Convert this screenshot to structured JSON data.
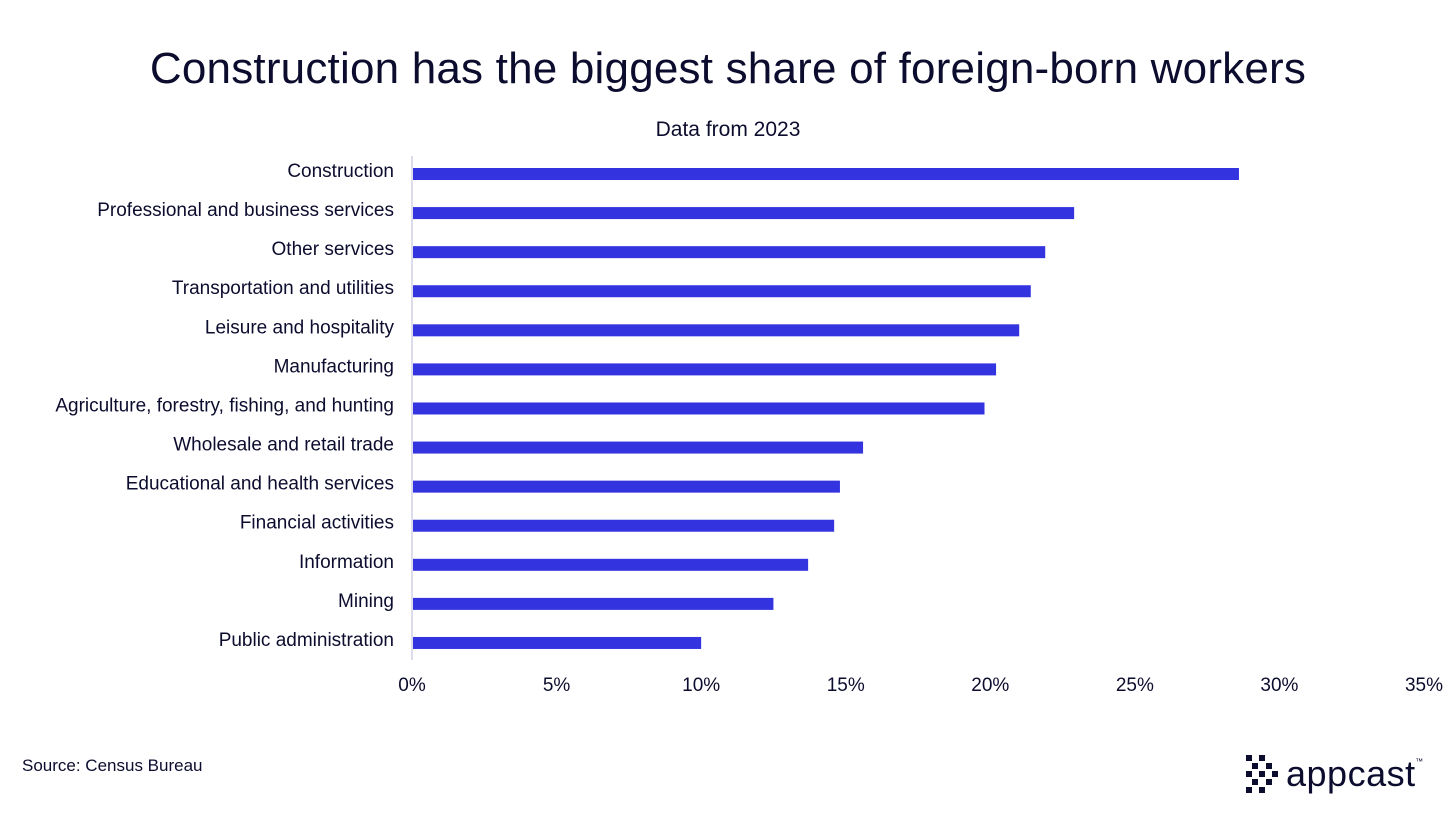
{
  "chart_data": {
    "type": "bar",
    "orientation": "horizontal",
    "title": "Construction has the biggest share of foreign-born workers",
    "subtitle": "Data from 2023",
    "categories": [
      "Construction",
      "Professional and business services",
      "Other services",
      "Transportation and utilities",
      "Leisure and hospitality",
      "Manufacturing",
      "Agriculture, forestry, fishing, and hunting",
      "Wholesale and retail trade",
      "Educational and health services",
      "Financial activities",
      "Information",
      "Mining",
      "Public administration"
    ],
    "values": [
      28.6,
      22.9,
      21.9,
      21.4,
      21.0,
      20.2,
      19.8,
      15.6,
      14.8,
      14.6,
      13.7,
      12.5,
      10.0
    ],
    "xlim": [
      0,
      35
    ],
    "xticks": [
      0,
      5,
      10,
      15,
      20,
      25,
      30,
      35
    ],
    "xtick_labels": [
      "0%",
      "5%",
      "10%",
      "15%",
      "20%",
      "25%",
      "30%",
      "35%"
    ],
    "xlabel": "",
    "ylabel": "",
    "grid": false,
    "legend": "none",
    "bar_color": "#3333e0",
    "axis_color": "#b8b8d8"
  },
  "footer": {
    "source": "Source: Census Bureau",
    "logo_text": "appcast",
    "logo_tm": "™"
  }
}
